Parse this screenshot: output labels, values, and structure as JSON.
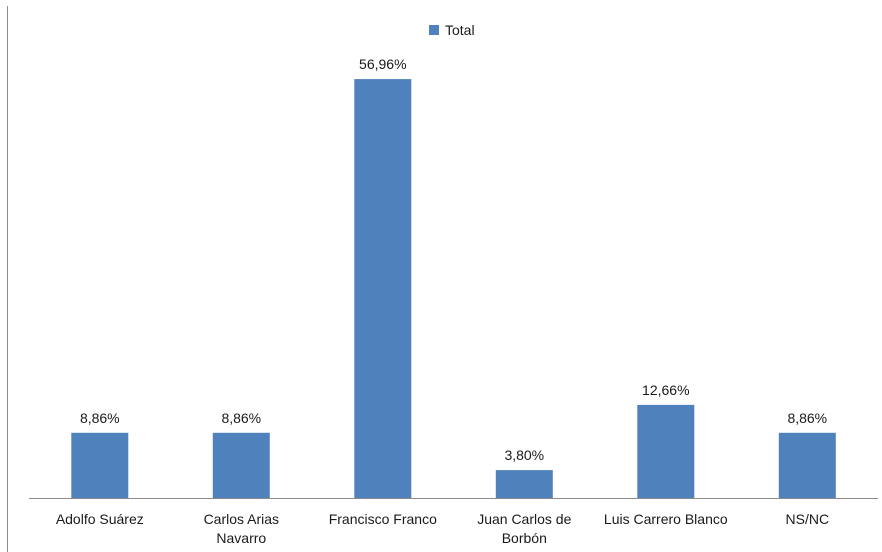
{
  "chart_data": {
    "type": "bar",
    "categories": [
      [
        "Adolfo Suárez"
      ],
      [
        "Carlos Arias",
        "Navarro"
      ],
      [
        "Francisco Franco"
      ],
      [
        "Juan Carlos de",
        "Borbón"
      ],
      [
        "Luis Carrero Blanco"
      ],
      [
        "NS/NC"
      ]
    ],
    "series": [
      {
        "name": "Total",
        "color": "#4f81bd",
        "values": [
          8.86,
          8.86,
          56.96,
          3.8,
          12.66,
          8.86
        ],
        "data_labels": [
          "8,86%",
          "8,86%",
          "56,96%",
          "3,80%",
          "12,66%",
          "8,86%"
        ]
      }
    ],
    "ylim": [
      0,
      65
    ],
    "grid": false,
    "legend": {
      "position": "top-center",
      "entries": [
        "Total"
      ]
    },
    "title": "",
    "xlabel": "",
    "ylabel": ""
  }
}
